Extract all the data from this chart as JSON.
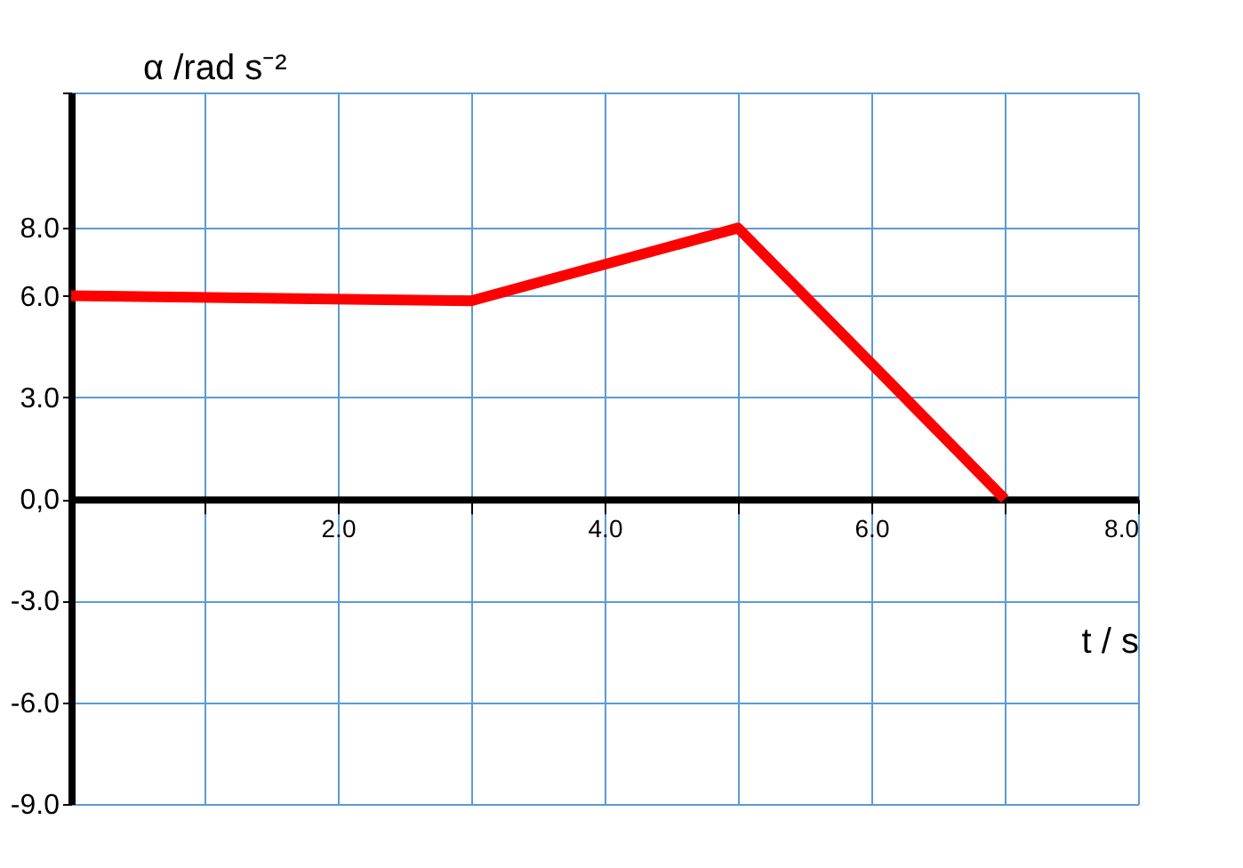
{
  "chart_data": {
    "type": "line",
    "x": [
      0,
      3,
      5,
      7
    ],
    "series": [
      {
        "color": "#ff0000",
        "values": [
          6.0,
          5.85,
          8.0,
          0.0
        ]
      }
    ],
    "xlabel": "t / s",
    "ylabel": "α /rad s⁻²",
    "xlim": [
      0,
      8
    ],
    "ylim": [
      -9,
      12
    ],
    "xticks": [
      {
        "value": 1,
        "label": null
      },
      {
        "value": 2,
        "label": "2.0"
      },
      {
        "value": 3,
        "label": null
      },
      {
        "value": 4,
        "label": "4.0"
      },
      {
        "value": 5,
        "label": null
      },
      {
        "value": 6,
        "label": "6.0"
      },
      {
        "value": 7,
        "label": null
      },
      {
        "value": 8,
        "label": "8.0"
      }
    ],
    "yticks": [
      {
        "value": -9,
        "label": "-9.0"
      },
      {
        "value": -6,
        "label": "-6.0"
      },
      {
        "value": -3,
        "label": "-3.0"
      },
      {
        "value": 0,
        "label": "0,0"
      },
      {
        "value": 3,
        "label": "3.0"
      },
      {
        "value": 6,
        "label": "6.0"
      },
      {
        "value": 8,
        "label": "8.0"
      },
      {
        "value": 12,
        "label": null
      }
    ],
    "grid": true,
    "marker": "none",
    "line_style": "solid"
  }
}
